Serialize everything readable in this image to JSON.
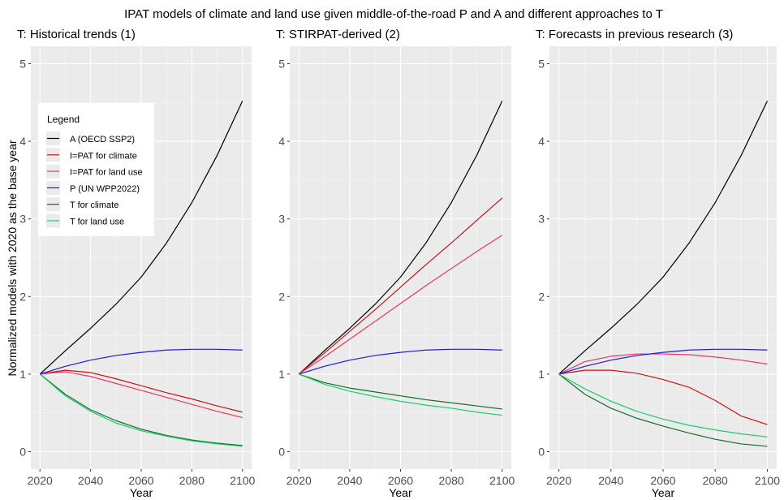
{
  "figure": {
    "title": "IPAT models of climate and land use given middle-of-the-road P and A and different approaches to T",
    "ylabel": "Normalized models with 2020 as the base year",
    "xlabel": "Year"
  },
  "colors": {
    "A (OECD SSP2)": "#000000",
    "I=PAT for climate": "#cc1111",
    "I=PAT for land use": "#ee3366",
    "P (UN WPP2022)": "#1a1add",
    "T for climate": "#146c2c",
    "T for land use": "#1ccc6a"
  },
  "legend": {
    "title": "Legend",
    "items": [
      "A (OECD SSP2)",
      "I=PAT for climate",
      "I=PAT for land use",
      "P (UN WPP2022)",
      "T for climate",
      "T for land use"
    ]
  },
  "chart_data": [
    {
      "type": "line",
      "title": "T: Historical trends (1)",
      "xlabel": "Year",
      "ylabel": "Normalized models with 2020 as the base year",
      "xlim": [
        2020,
        2100
      ],
      "ylim": [
        0,
        5
      ],
      "x_ticks": [
        2020,
        2040,
        2060,
        2080,
        2100
      ],
      "y_ticks": [
        0,
        1,
        2,
        3,
        4,
        5
      ],
      "grid": true,
      "legend_position": "top-left",
      "x": [
        2020,
        2030,
        2040,
        2050,
        2060,
        2070,
        2080,
        2090,
        2100
      ],
      "series": [
        {
          "name": "A (OECD SSP2)",
          "values": [
            1.0,
            1.3,
            1.59,
            1.9,
            2.25,
            2.69,
            3.21,
            3.82,
            4.52
          ]
        },
        {
          "name": "I=PAT for climate",
          "values": [
            1.0,
            1.05,
            1.02,
            0.94,
            0.85,
            0.76,
            0.68,
            0.59,
            0.51
          ]
        },
        {
          "name": "I=PAT for land use",
          "values": [
            1.0,
            1.03,
            0.97,
            0.88,
            0.79,
            0.7,
            0.61,
            0.52,
            0.44
          ]
        },
        {
          "name": "P (UN WPP2022)",
          "values": [
            1.0,
            1.1,
            1.18,
            1.24,
            1.28,
            1.31,
            1.32,
            1.32,
            1.31
          ]
        },
        {
          "name": "T for climate",
          "values": [
            1.0,
            0.74,
            0.54,
            0.4,
            0.29,
            0.21,
            0.15,
            0.11,
            0.08
          ]
        },
        {
          "name": "T for land use",
          "values": [
            1.0,
            0.72,
            0.52,
            0.37,
            0.27,
            0.2,
            0.14,
            0.1,
            0.07
          ]
        }
      ]
    },
    {
      "type": "line",
      "title": "T: STIRPAT-derived (2)",
      "xlabel": "Year",
      "xlim": [
        2020,
        2100
      ],
      "ylim": [
        0,
        5
      ],
      "x_ticks": [
        2020,
        2040,
        2060,
        2080,
        2100
      ],
      "y_ticks": [
        0,
        1,
        2,
        3,
        4,
        5
      ],
      "grid": true,
      "x": [
        2020,
        2030,
        2040,
        2050,
        2060,
        2070,
        2080,
        2090,
        2100
      ],
      "series": [
        {
          "name": "A (OECD SSP2)",
          "values": [
            1.0,
            1.3,
            1.59,
            1.9,
            2.25,
            2.69,
            3.21,
            3.82,
            4.52
          ]
        },
        {
          "name": "I=PAT for climate",
          "values": [
            1.0,
            1.27,
            1.55,
            1.83,
            2.12,
            2.41,
            2.69,
            2.98,
            3.27
          ]
        },
        {
          "name": "I=PAT for land use",
          "values": [
            1.0,
            1.22,
            1.45,
            1.68,
            1.91,
            2.14,
            2.36,
            2.58,
            2.79
          ]
        },
        {
          "name": "P (UN WPP2022)",
          "values": [
            1.0,
            1.1,
            1.18,
            1.24,
            1.28,
            1.31,
            1.32,
            1.32,
            1.31
          ]
        },
        {
          "name": "T for climate",
          "values": [
            1.0,
            0.89,
            0.82,
            0.77,
            0.72,
            0.67,
            0.63,
            0.59,
            0.55
          ]
        },
        {
          "name": "T for land use",
          "values": [
            1.0,
            0.87,
            0.78,
            0.71,
            0.65,
            0.6,
            0.56,
            0.51,
            0.47
          ]
        }
      ]
    },
    {
      "type": "line",
      "title": "T: Forecasts in previous research (3)",
      "xlabel": "Year",
      "xlim": [
        2020,
        2100
      ],
      "ylim": [
        0,
        5
      ],
      "x_ticks": [
        2020,
        2040,
        2060,
        2080,
        2100
      ],
      "y_ticks": [
        0,
        1,
        2,
        3,
        4,
        5
      ],
      "grid": true,
      "x": [
        2020,
        2030,
        2040,
        2050,
        2060,
        2070,
        2080,
        2090,
        2100
      ],
      "series": [
        {
          "name": "A (OECD SSP2)",
          "values": [
            1.0,
            1.3,
            1.59,
            1.9,
            2.25,
            2.69,
            3.21,
            3.82,
            4.52
          ]
        },
        {
          "name": "I=PAT for climate",
          "values": [
            1.0,
            1.05,
            1.05,
            1.01,
            0.93,
            0.83,
            0.66,
            0.46,
            0.35
          ]
        },
        {
          "name": "I=PAT for land use",
          "values": [
            1.0,
            1.16,
            1.23,
            1.26,
            1.26,
            1.25,
            1.22,
            1.18,
            1.13
          ]
        },
        {
          "name": "P (UN WPP2022)",
          "values": [
            1.0,
            1.1,
            1.18,
            1.24,
            1.28,
            1.31,
            1.32,
            1.32,
            1.31
          ]
        },
        {
          "name": "T for climate",
          "values": [
            1.0,
            0.74,
            0.56,
            0.43,
            0.33,
            0.24,
            0.16,
            0.1,
            0.07
          ]
        },
        {
          "name": "T for land use",
          "values": [
            1.0,
            0.81,
            0.65,
            0.52,
            0.42,
            0.34,
            0.28,
            0.23,
            0.19
          ]
        }
      ]
    }
  ]
}
